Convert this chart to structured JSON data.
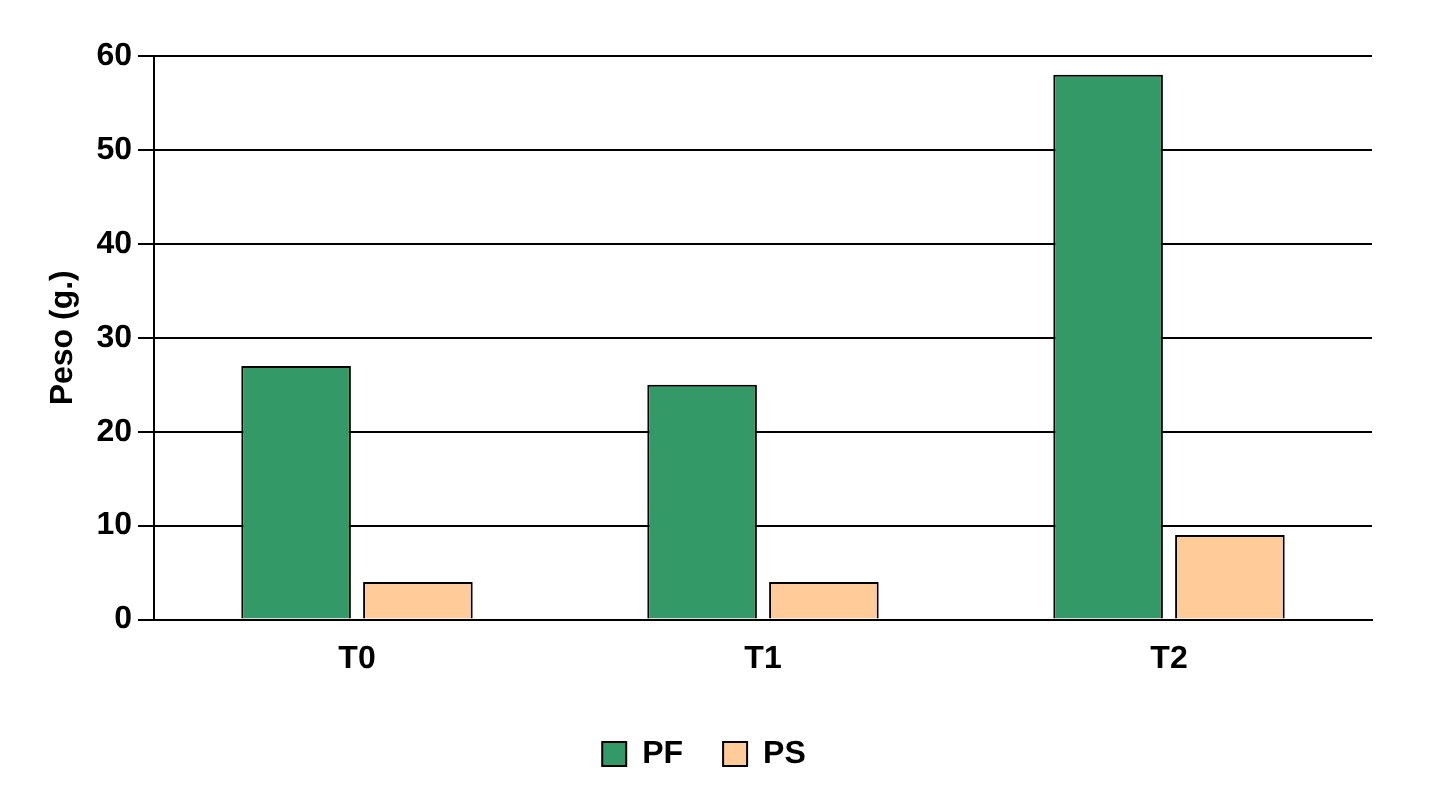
{
  "chart_data": {
    "type": "bar",
    "ylabel": "Peso (g.)",
    "categories": [
      "T0",
      "T1",
      "T2"
    ],
    "series": [
      {
        "name": "PF",
        "color": "#339966",
        "values": [
          27,
          25,
          58
        ]
      },
      {
        "name": "PS",
        "color": "#ffcc99",
        "values": [
          4,
          4,
          9
        ]
      }
    ],
    "ylim": [
      0,
      60
    ],
    "yticks": [
      0,
      10,
      20,
      30,
      40,
      50,
      60
    ],
    "grid": "y",
    "legend": "bottom"
  }
}
